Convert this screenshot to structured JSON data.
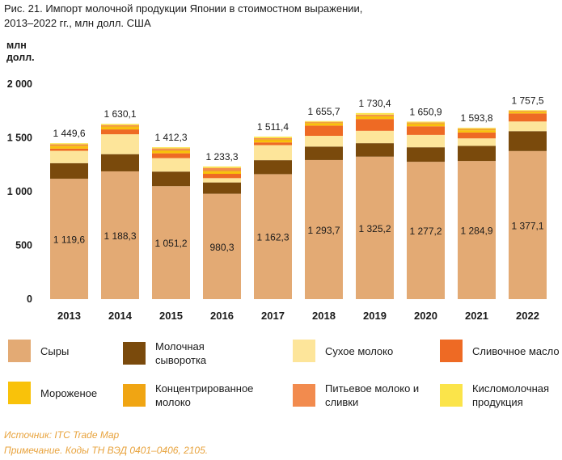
{
  "figure": {
    "title_line1": "Рис. 21. Импорт молочной продукции Японии в стоимостном выражении,",
    "title_line2": "2013–2022 гг., млн долл. США",
    "source": "Источник: ITC Trade Map",
    "note": "Примечание. Коды ТН ВЭД 0401–0406, 2105."
  },
  "chart_data": {
    "type": "bar",
    "stacked": true,
    "ylabel": "млн долл.",
    "ylim": [
      0,
      2000
    ],
    "yticks": [
      0,
      500,
      1000,
      1500,
      2000
    ],
    "ytick_labels": [
      "0",
      "500",
      "1 000",
      "1 500",
      "2 000"
    ],
    "categories": [
      "2013",
      "2014",
      "2015",
      "2016",
      "2017",
      "2018",
      "2019",
      "2020",
      "2021",
      "2022"
    ],
    "totals": [
      1449.6,
      1630.1,
      1412.3,
      1233.3,
      1511.4,
      1655.7,
      1730.4,
      1650.9,
      1593.8,
      1757.5
    ],
    "total_labels": [
      "1 449,6",
      "1 630,1",
      "1 412,3",
      "1 233,3",
      "1 511,4",
      "1 655,7",
      "1 730,4",
      "1 650,9",
      "1 593,8",
      "1 757,5"
    ],
    "series": [
      {
        "name": "Сыры",
        "color": "#e3aa74",
        "values": [
          1119.6,
          1188.3,
          1051.2,
          980.3,
          1162.3,
          1293.7,
          1325.2,
          1277.2,
          1284.9,
          1377.1
        ],
        "labels": [
          "1 119,6",
          "1 188,3",
          "1 051,2",
          "980,3",
          "1 162,3",
          "1 293,7",
          "1 325,2",
          "1 277,2",
          "1 284,9",
          "1 377,1"
        ]
      },
      {
        "name": "Молочная сыворотка",
        "color": "#7a4a0c",
        "values": [
          145,
          160,
          135,
          105,
          130,
          125,
          125,
          135,
          140,
          185
        ]
      },
      {
        "name": "Сухое молоко",
        "color": "#fde59a",
        "values": [
          115,
          185,
          125,
          40,
          140,
          100,
          115,
          115,
          70,
          90
        ]
      },
      {
        "name": "Сливочное масло",
        "color": "#ee6a24",
        "values": [
          20,
          45,
          45,
          40,
          25,
          95,
          110,
          80,
          55,
          75
        ]
      },
      {
        "name": "Мороженое",
        "color": "#f9c20a",
        "values": [
          20,
          20,
          20,
          20,
          20,
          20,
          20,
          20,
          20,
          15
        ]
      },
      {
        "name": "Концентрированное молоко",
        "color": "#f0a513",
        "values": [
          10,
          10,
          10,
          10,
          10,
          10,
          10,
          10,
          10,
          5
        ]
      },
      {
        "name": "Питьевое молоко и сливки",
        "color": "#f28b4e",
        "values": [
          10,
          10,
          15,
          25,
          10,
          5,
          10,
          5,
          5,
          5
        ]
      },
      {
        "name": "Кисломолочная продукция",
        "color": "#fbe44a",
        "values": [
          10,
          11.8,
          11.1,
          13,
          14.1,
          7,
          15.2,
          8.7,
          8.9,
          5.4
        ]
      }
    ],
    "legend_position": "bottom",
    "grid": false
  }
}
